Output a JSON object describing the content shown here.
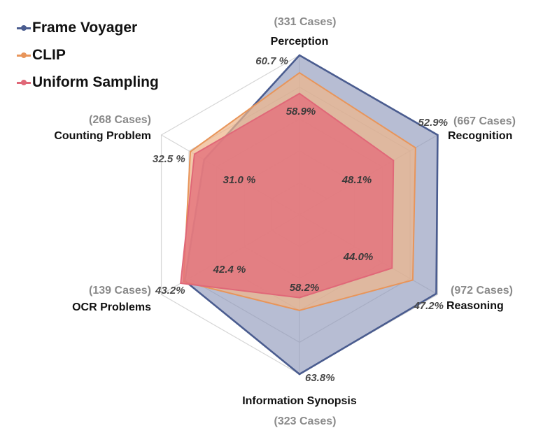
{
  "chart_data": {
    "type": "radar",
    "axes": [
      {
        "name": "Perception",
        "cases": "(331 Cases)"
      },
      {
        "name": "Recognition",
        "cases": "(667 Cases)"
      },
      {
        "name": "Reasoning",
        "cases": "(972 Cases)"
      },
      {
        "name": "Information Synopsis",
        "cases": "(323 Cases)"
      },
      {
        "name": "OCR Problems",
        "cases": "(139 Cases)"
      },
      {
        "name": "Counting Problem",
        "cases": "(268 Cases)"
      }
    ],
    "range": [
      0,
      1
    ],
    "rings": 5,
    "series": [
      {
        "name": "Frame Voyager",
        "color": "#4a5c8f",
        "fill": "#8a95b8",
        "values": [
          1.0,
          1.0,
          0.99,
          1.0,
          0.83,
          0.69
        ],
        "labels": [
          "60.7 %",
          "52.9%",
          "47.2%",
          "63.8%",
          "43.2%",
          "32.5 %"
        ]
      },
      {
        "name": "CLIP",
        "color": "#e8955a",
        "fill": "#efb58a",
        "values": [
          0.89,
          0.84,
          0.82,
          0.6,
          0.84,
          0.79
        ],
        "labels": []
      },
      {
        "name": "Uniform Sampling",
        "color": "#e06878",
        "fill": "#e4707c",
        "values": [
          0.76,
          0.68,
          0.67,
          0.52,
          0.86,
          0.76
        ],
        "labels": [
          "58.9%",
          "48.1%",
          "44.0%",
          "58.2%",
          "42.4 %",
          "31.0 %"
        ]
      }
    ],
    "grid": true,
    "legend": "top-left"
  }
}
